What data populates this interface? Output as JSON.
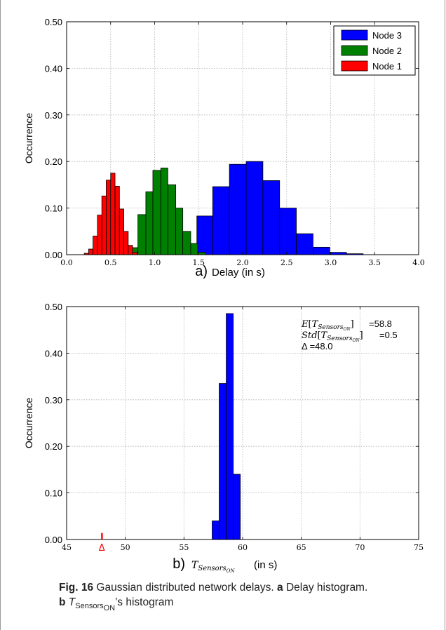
{
  "chart_data": [
    {
      "type": "bar",
      "panel_label": "a)",
      "xlabel": "Delay (in s)",
      "ylabel": "Occurrence",
      "xlim": [
        0.0,
        4.0
      ],
      "ylim": [
        0.0,
        0.5
      ],
      "xticks": [
        "0.0",
        "0.5",
        "1.0",
        "1.5",
        "2.0",
        "2.5",
        "3.0",
        "3.5",
        "4.0"
      ],
      "yticks": [
        "0.00",
        "0.10",
        "0.20",
        "0.30",
        "0.40",
        "0.50"
      ],
      "grid": true,
      "legend_position": "top-right",
      "series": [
        {
          "name": "Node 3",
          "color": "#0000ff",
          "bins": [
            {
              "x0": 1.15,
              "x1": 1.25,
              "y": 0.003
            },
            {
              "x0": 1.3,
              "x1": 1.48,
              "y": 0.005
            },
            {
              "x0": 1.48,
              "x1": 1.66,
              "y": 0.083
            },
            {
              "x0": 1.66,
              "x1": 1.85,
              "y": 0.146
            },
            {
              "x0": 1.85,
              "x1": 2.04,
              "y": 0.194
            },
            {
              "x0": 2.04,
              "x1": 2.23,
              "y": 0.2
            },
            {
              "x0": 2.23,
              "x1": 2.42,
              "y": 0.159
            },
            {
              "x0": 2.42,
              "x1": 2.61,
              "y": 0.1
            },
            {
              "x0": 2.61,
              "x1": 2.8,
              "y": 0.045
            },
            {
              "x0": 2.8,
              "x1": 2.99,
              "y": 0.016
            },
            {
              "x0": 2.99,
              "x1": 3.18,
              "y": 0.005
            },
            {
              "x0": 3.18,
              "x1": 3.37,
              "y": 0.002
            }
          ]
        },
        {
          "name": "Node 2",
          "color": "#008000",
          "bins": [
            {
              "x0": 0.66,
              "x1": 0.73,
              "y": 0.01
            },
            {
              "x0": 0.73,
              "x1": 0.81,
              "y": 0.015
            },
            {
              "x0": 0.81,
              "x1": 0.9,
              "y": 0.086
            },
            {
              "x0": 0.9,
              "x1": 0.98,
              "y": 0.135
            },
            {
              "x0": 0.98,
              "x1": 1.07,
              "y": 0.181
            },
            {
              "x0": 1.07,
              "x1": 1.15,
              "y": 0.186
            },
            {
              "x0": 1.15,
              "x1": 1.24,
              "y": 0.15
            },
            {
              "x0": 1.24,
              "x1": 1.32,
              "y": 0.1
            },
            {
              "x0": 1.32,
              "x1": 1.41,
              "y": 0.05
            },
            {
              "x0": 1.41,
              "x1": 1.49,
              "y": 0.024
            },
            {
              "x0": 1.49,
              "x1": 1.58,
              "y": 0.005
            }
          ]
        },
        {
          "name": "Node 1",
          "color": "#ff0000",
          "bins": [
            {
              "x0": 0.2,
              "x1": 0.25,
              "y": 0.003
            },
            {
              "x0": 0.25,
              "x1": 0.3,
              "y": 0.012
            },
            {
              "x0": 0.3,
              "x1": 0.35,
              "y": 0.04
            },
            {
              "x0": 0.35,
              "x1": 0.4,
              "y": 0.085
            },
            {
              "x0": 0.4,
              "x1": 0.45,
              "y": 0.126
            },
            {
              "x0": 0.45,
              "x1": 0.5,
              "y": 0.16
            },
            {
              "x0": 0.5,
              "x1": 0.55,
              "y": 0.175
            },
            {
              "x0": 0.55,
              "x1": 0.6,
              "y": 0.147
            },
            {
              "x0": 0.6,
              "x1": 0.65,
              "y": 0.098
            },
            {
              "x0": 0.65,
              "x1": 0.7,
              "y": 0.05
            },
            {
              "x0": 0.7,
              "x1": 0.75,
              "y": 0.02
            },
            {
              "x0": 0.75,
              "x1": 0.8,
              "y": 0.005
            }
          ]
        }
      ]
    },
    {
      "type": "bar",
      "panel_label": "b)",
      "xlabel": "(in s)",
      "ylabel": "Occurrence",
      "xlim": [
        45,
        75
      ],
      "ylim": [
        0.0,
        0.5
      ],
      "xticks": [
        "45",
        "50",
        "55",
        "60",
        "65",
        "70",
        "75"
      ],
      "yticks": [
        "0.00",
        "0.10",
        "0.20",
        "0.30",
        "0.40",
        "0.50"
      ],
      "grid": true,
      "series": [
        {
          "color": "#0000ff",
          "bins": [
            {
              "x0": 57.4,
              "x1": 58.0,
              "y": 0.04
            },
            {
              "x0": 58.0,
              "x1": 58.6,
              "y": 0.335
            },
            {
              "x0": 58.6,
              "x1": 59.2,
              "y": 0.485
            },
            {
              "x0": 59.2,
              "x1": 59.8,
              "y": 0.14
            }
          ]
        }
      ],
      "delta_marker": {
        "x": 48.0,
        "y": 0.014,
        "symbol": "Δ",
        "color": "#ff0000"
      },
      "annotations": {
        "mean_value": "=58.8",
        "std_value": "=0.5",
        "delta_line": "Δ =48.0"
      }
    }
  ],
  "caption": {
    "fig_label": "Fig. 16",
    "text_1": "Gaussian distributed network delays.",
    "a_label": "a",
    "text_2": "Delay histogram.",
    "b_label": "b",
    "T": "T",
    "sub": "Sensors",
    "subsub": "ON",
    "text_3": "’s histogram"
  }
}
